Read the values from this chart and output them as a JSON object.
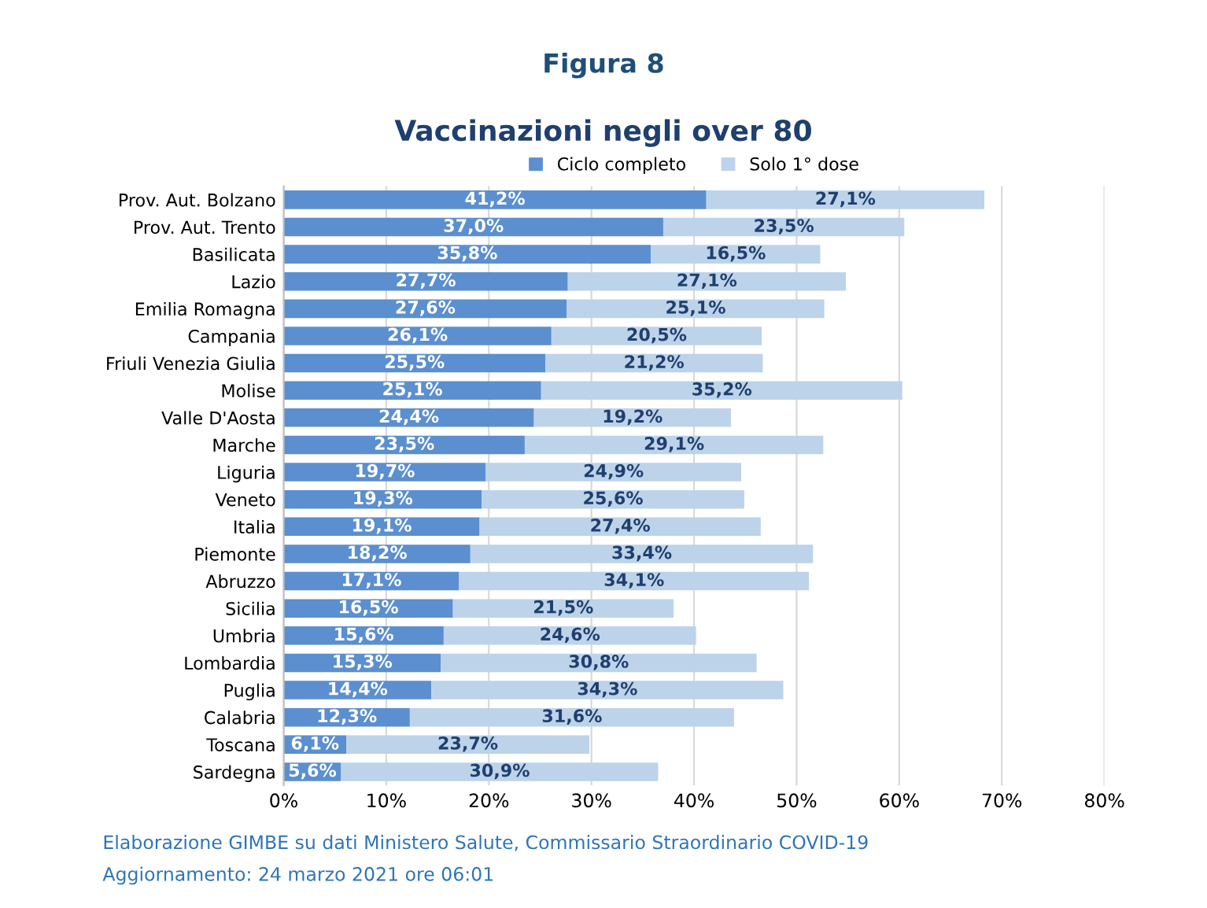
{
  "chart_data": {
    "type": "bar",
    "orientation": "horizontal",
    "stacked": true,
    "title": "Figura 8",
    "subtitle": "Vaccinazioni negli over 80",
    "categories": [
      "Prov. Aut. Bolzano",
      "Prov. Aut. Trento",
      "Basilicata",
      "Lazio",
      "Emilia Romagna",
      "Campania",
      "Friuli Venezia Giulia",
      "Molise",
      "Valle D'Aosta",
      "Marche",
      "Liguria",
      "Veneto",
      "Italia",
      "Piemonte",
      "Abruzzo",
      "Sicilia",
      "Umbria",
      "Lombardia",
      "Puglia",
      "Calabria",
      "Toscana",
      "Sardegna"
    ],
    "series": [
      {
        "name": "Ciclo completo",
        "color": "#5b8fcf",
        "values": [
          41.2,
          37.0,
          35.8,
          27.7,
          27.6,
          26.1,
          25.5,
          25.1,
          24.4,
          23.5,
          19.7,
          19.3,
          19.1,
          18.2,
          17.1,
          16.5,
          15.6,
          15.3,
          14.4,
          12.3,
          6.1,
          5.6
        ],
        "value_labels": [
          "41,2%",
          "37,0%",
          "35,8%",
          "27,7%",
          "27,6%",
          "26,1%",
          "25,5%",
          "25,1%",
          "24,4%",
          "23,5%",
          "19,7%",
          "19,3%",
          "19,1%",
          "18,2%",
          "17,1%",
          "16,5%",
          "15,6%",
          "15,3%",
          "14,4%",
          "12,3%",
          "6,1%",
          "5,6%"
        ]
      },
      {
        "name": "Solo 1° dose",
        "color": "#bdd3ea",
        "values": [
          27.1,
          23.5,
          16.5,
          27.1,
          25.1,
          20.5,
          21.2,
          35.2,
          19.2,
          29.1,
          24.9,
          25.6,
          27.4,
          33.4,
          34.1,
          21.5,
          24.6,
          30.8,
          34.3,
          31.6,
          23.7,
          30.9
        ],
        "value_labels": [
          "27,1%",
          "23,5%",
          "16,5%",
          "27,1%",
          "25,1%",
          "20,5%",
          "21,2%",
          "35,2%",
          "19,2%",
          "29,1%",
          "24,9%",
          "25,6%",
          "27,4%",
          "33,4%",
          "34,1%",
          "21,5%",
          "24,6%",
          "30,8%",
          "34,3%",
          "31,6%",
          "23,7%",
          "30,9%"
        ]
      }
    ],
    "xlim": [
      0,
      80
    ],
    "xticks": [
      {
        "value": 0,
        "label": "0%"
      },
      {
        "value": 10,
        "label": "10%"
      },
      {
        "value": 20,
        "label": "20%"
      },
      {
        "value": 30,
        "label": "30%"
      },
      {
        "value": 40,
        "label": "40%"
      },
      {
        "value": 50,
        "label": "50%"
      },
      {
        "value": 60,
        "label": "60%"
      },
      {
        "value": 70,
        "label": "70%"
      },
      {
        "value": 80,
        "label": "80%"
      }
    ],
    "grid": "x",
    "legend": "top",
    "annotations": [
      "Elaborazione GIMBE su dati Ministero Salute, Commissario Straordinario COVID-19",
      "Aggiornamento: 24 marzo 2021 ore 06:01"
    ]
  }
}
